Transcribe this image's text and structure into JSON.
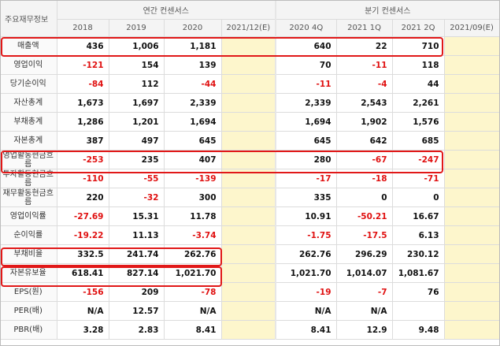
{
  "header": {
    "label_col": "주요재무정보",
    "annual_group": "연간 컨센서스",
    "quarter_group": "분기 컨센서스",
    "columns": [
      "2018",
      "2019",
      "2020",
      "2021/12(E)",
      "2020 4Q",
      "2021 1Q",
      "2021 2Q",
      "2021/09(E)"
    ]
  },
  "rows": [
    {
      "label": "매출액",
      "values": [
        "436",
        "1,006",
        "1,181",
        "",
        "640",
        "22",
        "710",
        ""
      ]
    },
    {
      "label": "영업이익",
      "values": [
        "-121",
        "154",
        "139",
        "",
        "70",
        "-11",
        "118",
        ""
      ]
    },
    {
      "label": "당기순이익",
      "values": [
        "-84",
        "112",
        "-44",
        "",
        "-11",
        "-4",
        "44",
        ""
      ]
    },
    {
      "label": "자산총계",
      "values": [
        "1,673",
        "1,697",
        "2,339",
        "",
        "2,339",
        "2,543",
        "2,261",
        ""
      ]
    },
    {
      "label": "부채총계",
      "values": [
        "1,286",
        "1,201",
        "1,694",
        "",
        "1,694",
        "1,902",
        "1,576",
        ""
      ]
    },
    {
      "label": "자본총계",
      "values": [
        "387",
        "497",
        "645",
        "",
        "645",
        "642",
        "685",
        ""
      ]
    },
    {
      "label": "영업활동현금흐름",
      "values": [
        "-253",
        "235",
        "407",
        "",
        "280",
        "-67",
        "-247",
        ""
      ]
    },
    {
      "label": "투자활동현금흐름",
      "values": [
        "-110",
        "-55",
        "-139",
        "",
        "-17",
        "-18",
        "-71",
        ""
      ]
    },
    {
      "label": "재무활동현금흐름",
      "values": [
        "220",
        "-32",
        "300",
        "",
        "335",
        "0",
        "0",
        ""
      ]
    },
    {
      "label": "영업이익률",
      "values": [
        "-27.69",
        "15.31",
        "11.78",
        "",
        "10.91",
        "-50.21",
        "16.67",
        ""
      ]
    },
    {
      "label": "순이익률",
      "values": [
        "-19.22",
        "11.13",
        "-3.74",
        "",
        "-1.75",
        "-17.5",
        "6.13",
        ""
      ]
    },
    {
      "label": "부채비율",
      "values": [
        "332.5",
        "241.74",
        "262.76",
        "",
        "262.76",
        "296.29",
        "230.12",
        ""
      ]
    },
    {
      "label": "자본유보율",
      "values": [
        "618.41",
        "827.14",
        "1,021.70",
        "",
        "1,021.70",
        "1,014.07",
        "1,081.67",
        ""
      ]
    },
    {
      "label": "EPS(원)",
      "values": [
        "-156",
        "209",
        "-78",
        "",
        "-19",
        "-7",
        "76",
        ""
      ]
    },
    {
      "label": "PER(배)",
      "values": [
        "N/A",
        "12.57",
        "N/A",
        "",
        "N/A",
        "N/A",
        "",
        ""
      ]
    },
    {
      "label": "PBR(배)",
      "values": [
        "3.28",
        "2.83",
        "8.41",
        "",
        "8.41",
        "12.9",
        "9.48",
        ""
      ]
    }
  ]
}
